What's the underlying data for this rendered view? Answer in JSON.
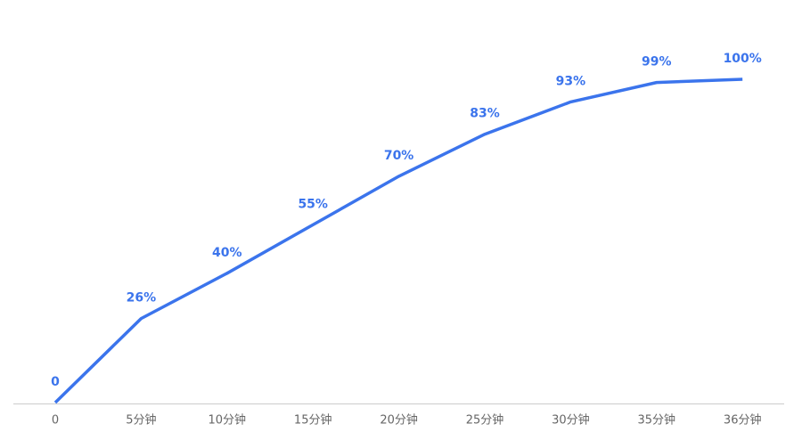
{
  "chart_data": {
    "type": "line",
    "categories": [
      "0",
      "5分钟",
      "10分钟",
      "15分钟",
      "20分钟",
      "25分钟",
      "30分钟",
      "35分钟",
      "36分钟"
    ],
    "series": [
      {
        "color": "#3b74ec",
        "values": [
          0,
          26,
          40,
          55,
          70,
          83,
          93,
          99,
          100
        ],
        "value_labels": [
          "0",
          "26%",
          "40%",
          "55%",
          "70%",
          "83%",
          "93%",
          "99%",
          "100%"
        ]
      }
    ],
    "ylim": [
      0,
      100
    ]
  }
}
